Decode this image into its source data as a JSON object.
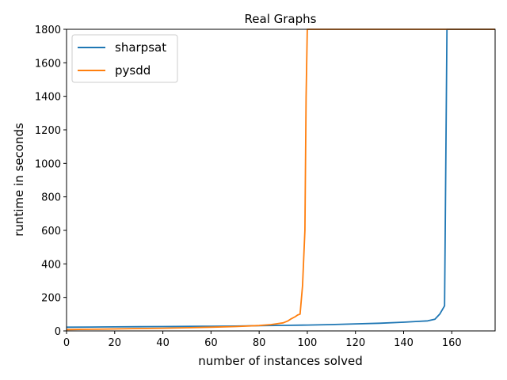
{
  "chart_data": {
    "type": "line",
    "title": "Real Graphs",
    "xlabel": "number of instances solved",
    "ylabel": "runtime in seconds",
    "xlim": [
      0,
      178
    ],
    "ylim": [
      0,
      1800
    ],
    "xticks": [
      0,
      20,
      40,
      60,
      80,
      100,
      120,
      140,
      160
    ],
    "yticks": [
      0,
      200,
      400,
      600,
      800,
      1000,
      1200,
      1400,
      1600,
      1800
    ],
    "grid": false,
    "legend": "top-left",
    "series": [
      {
        "name": "sharpsat",
        "color": "#1f77b4",
        "x": [
          0,
          10,
          20,
          30,
          40,
          50,
          60,
          70,
          80,
          90,
          100,
          110,
          120,
          130,
          140,
          145,
          150,
          153,
          155,
          157,
          158,
          178
        ],
        "y": [
          22,
          23,
          24,
          25,
          26,
          27,
          28,
          29,
          31,
          33,
          35,
          38,
          42,
          46,
          52,
          56,
          60,
          70,
          100,
          150,
          1800,
          1800
        ]
      },
      {
        "name": "pysdd",
        "color": "#ff7f0e",
        "x": [
          0,
          10,
          20,
          30,
          40,
          50,
          60,
          70,
          80,
          85,
          87,
          90,
          92,
          93,
          95,
          96,
          97,
          98,
          99,
          99.5,
          100,
          178
        ],
        "y": [
          8,
          10,
          12,
          14,
          16,
          19,
          22,
          26,
          32,
          38,
          42,
          48,
          60,
          70,
          85,
          95,
          100,
          270,
          600,
          1400,
          1800,
          1800
        ]
      }
    ]
  }
}
